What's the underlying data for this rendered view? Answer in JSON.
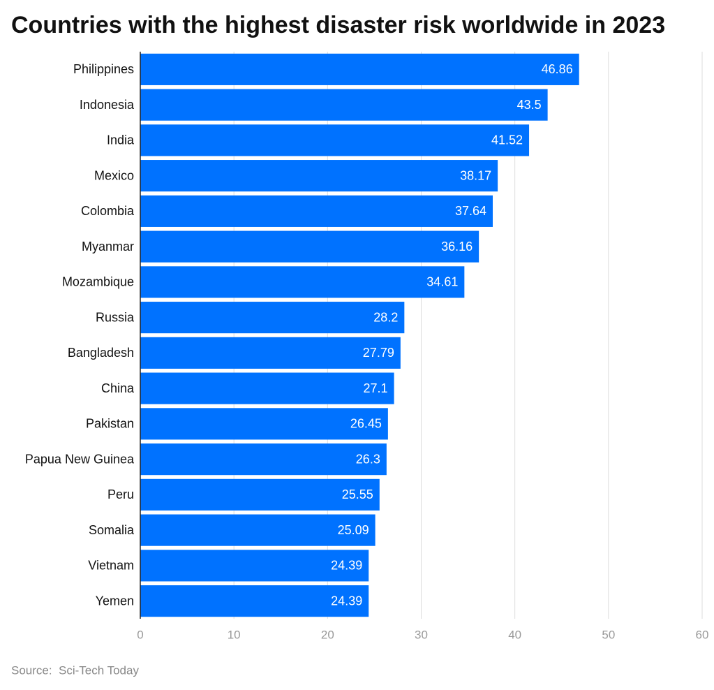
{
  "chart_data": {
    "type": "bar",
    "orientation": "horizontal",
    "title": "Countries with the highest disaster risk worldwide in 2023",
    "categories": [
      "Philippines",
      "Indonesia",
      "India",
      "Mexico",
      "Colombia",
      "Myanmar",
      "Mozambique",
      "Russia",
      "Bangladesh",
      "China",
      "Pakistan",
      "Papua New Guinea",
      "Peru",
      "Somalia",
      "Vietnam",
      "Yemen"
    ],
    "values": [
      46.86,
      43.5,
      41.52,
      38.17,
      37.64,
      36.16,
      34.61,
      28.2,
      27.79,
      27.1,
      26.45,
      26.3,
      25.55,
      25.09,
      24.39,
      24.39
    ],
    "color": "#0072ff",
    "xlim": [
      0,
      60
    ],
    "xticks": [
      0,
      10,
      20,
      30,
      40,
      50,
      60
    ],
    "grid": true,
    "source_label": "Source:",
    "source": "Sci-Tech Today"
  }
}
